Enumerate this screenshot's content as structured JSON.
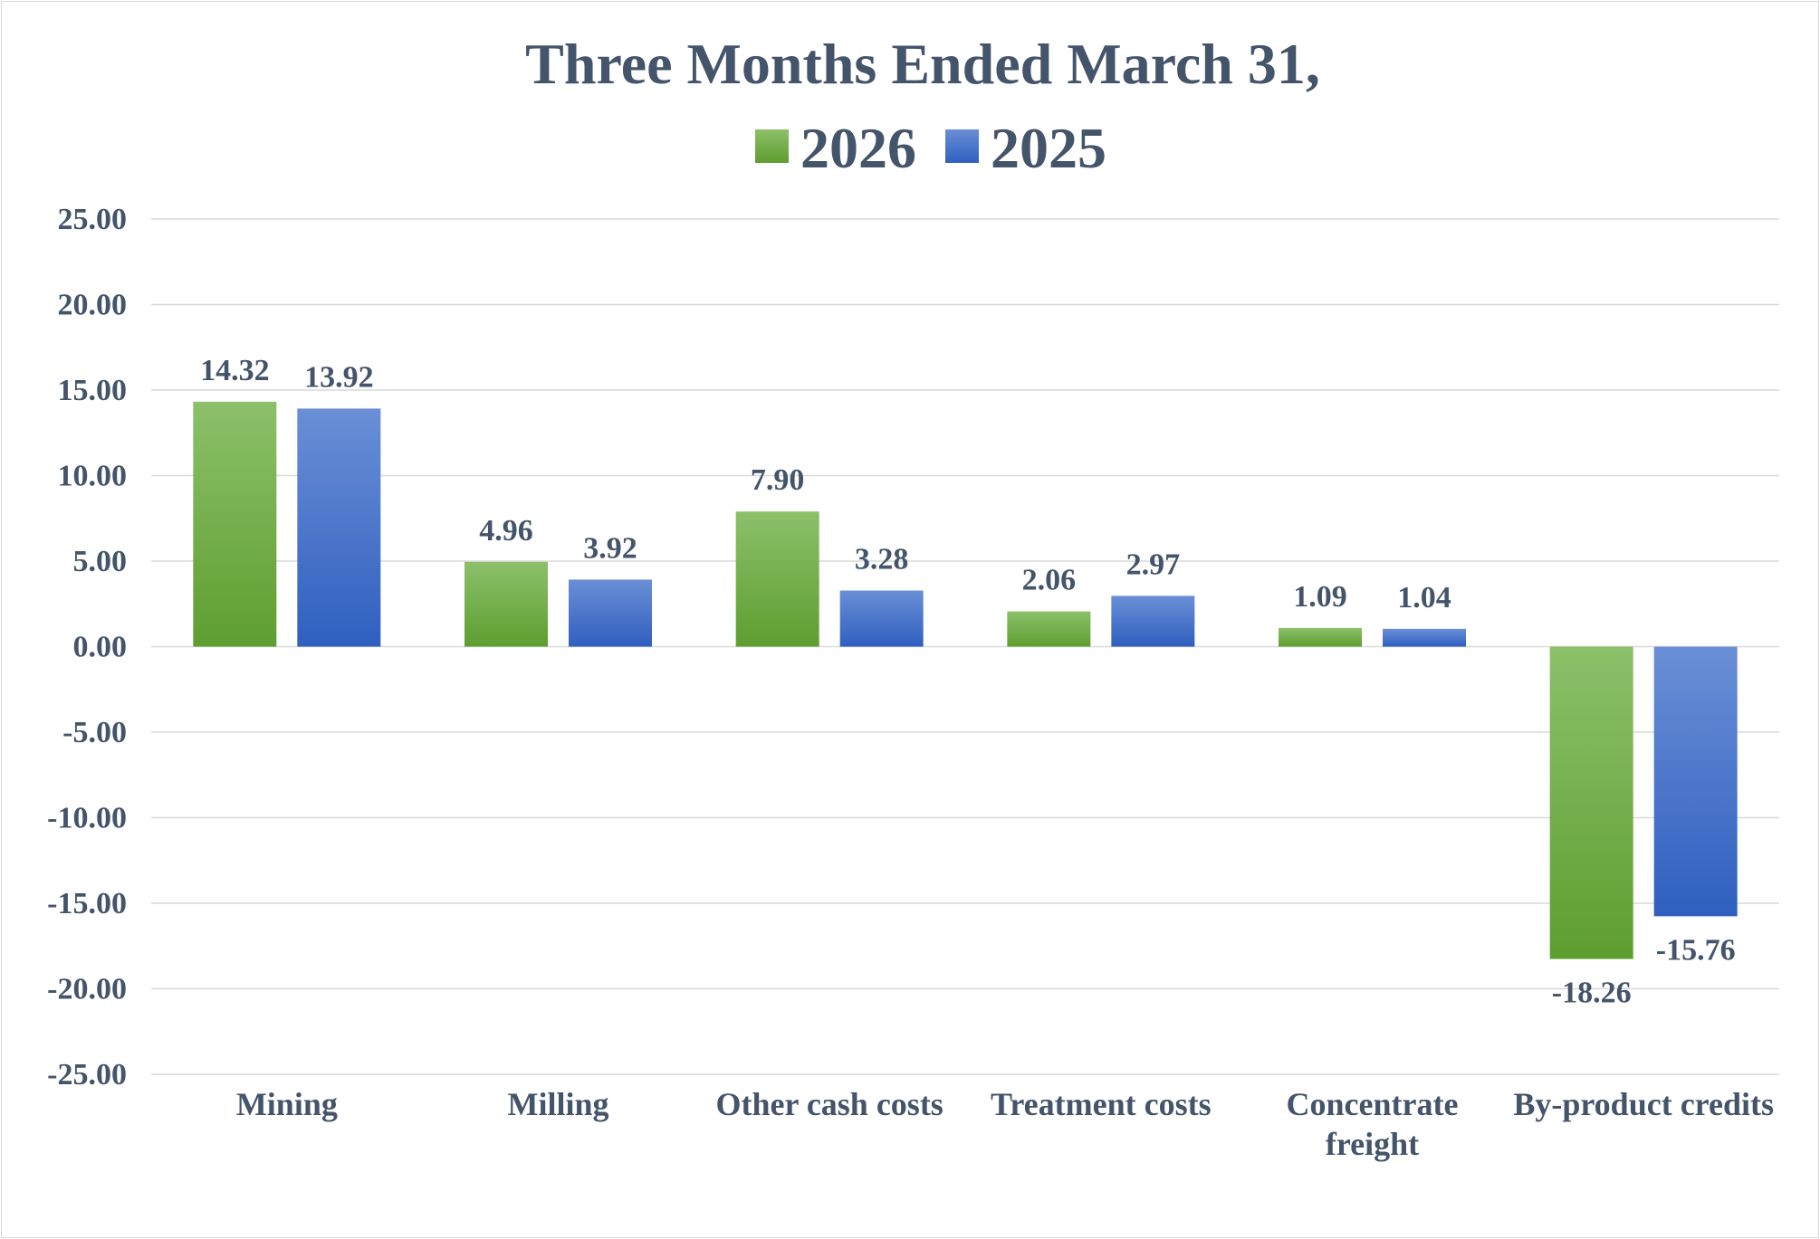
{
  "chart_data": {
    "type": "bar",
    "title": "Three Months Ended March 31,",
    "categories": [
      "Mining",
      "Milling",
      "Other cash costs",
      "Treatment costs",
      "Concentrate freight",
      "By-product credits"
    ],
    "series": [
      {
        "name": "2026",
        "values": [
          14.32,
          4.96,
          7.9,
          2.06,
          1.09,
          -18.26
        ],
        "labels": [
          "14.32",
          "4.96",
          "7.90",
          "2.06",
          "1.09",
          "-18.26"
        ],
        "color": "#70ad47"
      },
      {
        "name": "2025",
        "values": [
          13.92,
          3.92,
          3.28,
          2.97,
          1.04,
          -15.76
        ],
        "labels": [
          "13.92",
          "3.92",
          "3.28",
          "2.97",
          "1.04",
          "-15.76"
        ],
        "color": "#4472c4"
      }
    ],
    "yticks": [
      "25.00",
      "20.00",
      "15.00",
      "10.00",
      "5.00",
      "0.00",
      "-5.00",
      "-10.00",
      "-15.00",
      "-20.00",
      "-25.00"
    ],
    "ylim": [
      -25,
      25
    ],
    "grid": true,
    "legend": "top-center"
  }
}
